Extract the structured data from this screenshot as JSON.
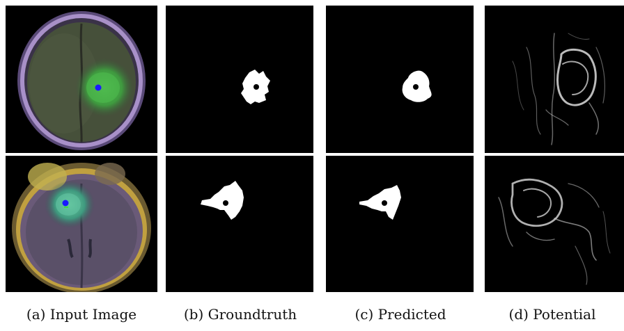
{
  "figure": {
    "captions": {
      "a": "(a) Input Image",
      "b": "(b) Groundtruth",
      "c": "(c) Predicted",
      "d": "(d) Potential"
    },
    "colors": {
      "background": "#000000",
      "seed_point": "#1a1aff",
      "mask": "#ffffff",
      "tumor_tint": "#3fae3f"
    },
    "rows": [
      {
        "name": "row-1"
      },
      {
        "name": "row-2"
      }
    ]
  }
}
